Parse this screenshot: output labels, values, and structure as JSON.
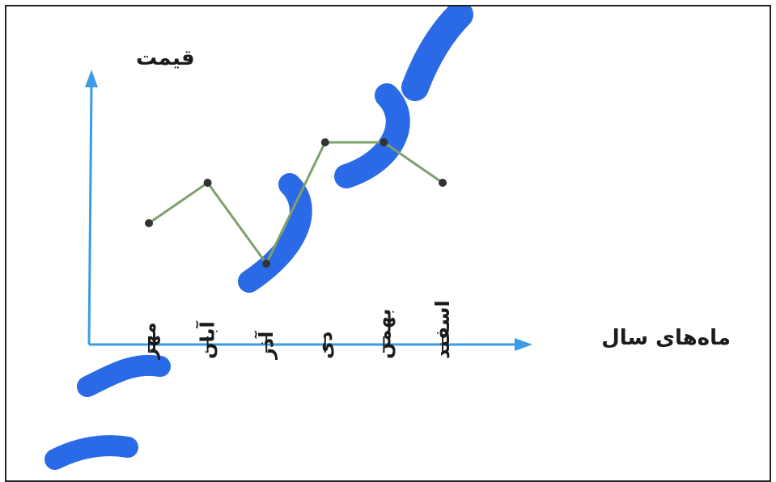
{
  "chart_data": {
    "type": "line",
    "title": "",
    "xlabel": "ماه‌های سال",
    "ylabel": "قیمت",
    "categories": [
      "مهر",
      "آبان",
      "آذر",
      "دی",
      "بهمن",
      "اسفند"
    ],
    "series": [
      {
        "values": [
          3,
          4,
          2,
          5,
          5,
          4
        ]
      }
    ],
    "ylim": [
      0,
      6.6
    ],
    "grid": false,
    "legend": "none",
    "y_ticks_shown": false,
    "colors": {
      "axis": "#3b9be6",
      "line": "#7fa06a",
      "marker": "#333333",
      "text": "#1b1b1b",
      "watermark": "#1f63e6"
    }
  }
}
